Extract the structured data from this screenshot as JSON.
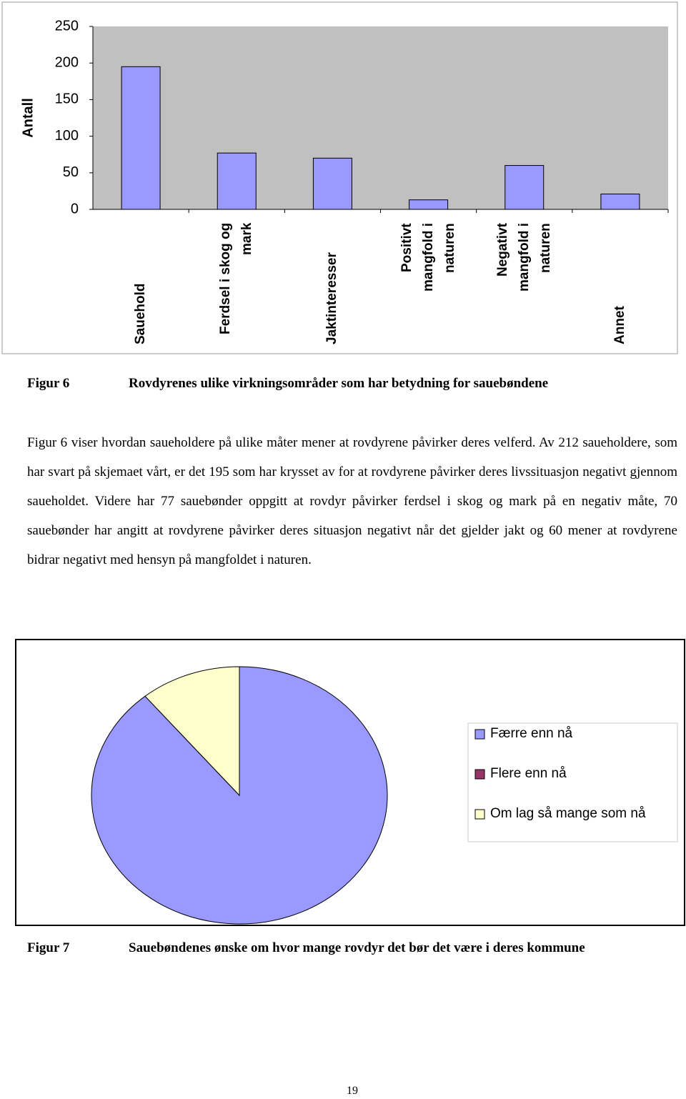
{
  "chart_data": [
    {
      "type": "bar",
      "y_label": "Antall",
      "categories": [
        "Sauehold",
        "Ferdsel i skog og mark",
        "Jaktinteresser",
        "Positivt mangfold i naturen",
        "Negativt mangfold i naturen",
        "Annet"
      ],
      "values": [
        195,
        77,
        70,
        13,
        60,
        21
      ],
      "color": "#9999ff",
      "ylim": [
        0,
        250
      ],
      "yticks": [
        0,
        50,
        100,
        150,
        200,
        250
      ]
    },
    {
      "type": "pie",
      "categories": [
        "Færre enn nå",
        "Flere enn nå",
        "Om lag så mange som nå"
      ],
      "values": [
        89,
        0,
        11
      ],
      "colors": [
        "#9999ff",
        "#993366",
        "#ffffcc"
      ],
      "legend": "right"
    }
  ],
  "figure6": {
    "label": "Figur 6",
    "caption": "Rovdyrenes ulike virkningsområder som har betydning for sauebøndene"
  },
  "paragraph": "Figur 6 viser hvordan saueholdere på ulike måter mener at rovdyrene påvirker deres velferd. Av 212 saueholdere, som har svart på skjemaet vårt, er det 195 som har krysset av for at rovdyrene påvirker deres livssituasjon negativt gjennom saueholdet. Videre har 77 sauebønder oppgitt at rovdyr påvirker ferdsel i skog og mark på en negativ måte, 70 sauebønder har angitt at rovdyrene påvirker deres situasjon negativt når det gjelder jakt og 60 mener at rovdyrene bidrar negativt med hensyn på mangfoldet i naturen.",
  "figure7": {
    "label": "Figur 7",
    "caption": "Sauebøndenes ønske om hvor mange rovdyr det bør det være i deres kommune"
  },
  "page_number": "19"
}
